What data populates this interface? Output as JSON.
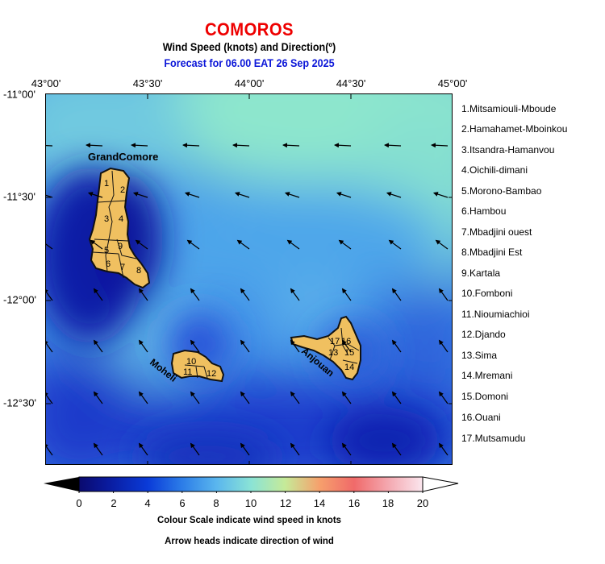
{
  "title": "COMOROS",
  "subtitle": "Wind Speed (knots) and Direction(º)",
  "forecast": "Forecast for  06.00 EAT 26 Sep 2025",
  "longitude_labels": [
    "43°00'",
    "43°30'",
    "44°00'",
    "44°30'",
    "45°00'"
  ],
  "latitude_labels": [
    "-11°00'",
    "-11°30'",
    "-12°00'",
    "-12°30'"
  ],
  "regions": [
    "1.Mitsamiouli-Mboude",
    "2.Hamahamet-Mboinkou",
    "3.Itsandra-Hamanvou",
    "4.Oichili-dimani",
    "5.Morono-Bambao",
    "6.Hambou",
    "7.Mbadjini ouest",
    "8.Mbadjini Est",
    "9.Kartala",
    "10.Fomboni",
    "11.Nioumiachioi",
    "12.Djando",
    "13.Sima",
    "14.Mremani",
    "15.Domoni",
    "16.Ouani",
    "17.Mutsamudu"
  ],
  "island_labels": {
    "grand_comore": "GrandComore",
    "moheli": "Moheli",
    "anjouan": "Anjouan"
  },
  "region_numbers": {
    "gc": [
      "1",
      "2",
      "3",
      "4",
      "5",
      "6",
      "7",
      "8",
      "9"
    ],
    "moheli": [
      "10",
      "11",
      "12"
    ],
    "anjouan": [
      "13",
      "14",
      "15",
      "16",
      "17"
    ]
  },
  "colorbar": {
    "ticks": [
      "0",
      "2",
      "4",
      "6",
      "8",
      "10",
      "12",
      "14",
      "16",
      "18",
      "20"
    ],
    "caption_1": "Colour Scale indicate wind speed in knots",
    "caption_2": "Arrow heads indicate direction of wind",
    "stops": [
      "#000000",
      "#0a1a9c",
      "#0a3bd8",
      "#2c7de8",
      "#5ab6ee",
      "#8ae3d6",
      "#c6ea98",
      "#f6a06c",
      "#f06a6a",
      "#f4a8b0",
      "#f8d0dc",
      "#ffffff"
    ]
  },
  "colors": {
    "title": "#ee0000",
    "forecast": "#0b16d8",
    "land": "#f0c060"
  }
}
